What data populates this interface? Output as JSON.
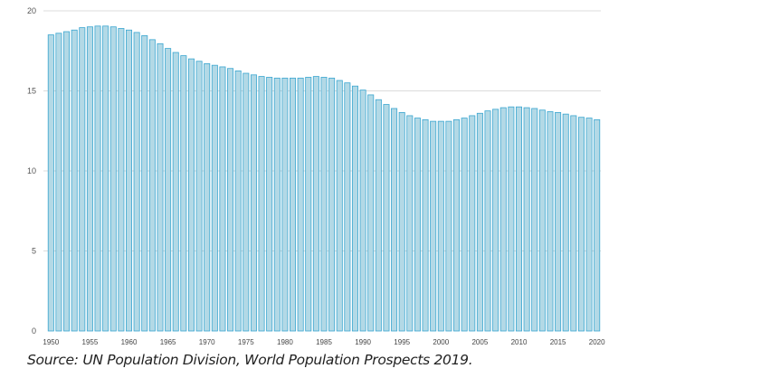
{
  "chart_data": {
    "type": "bar",
    "title": "",
    "xlabel": "",
    "ylabel": "",
    "ylim": [
      0,
      20
    ],
    "yticks": [
      "0",
      "5",
      "10",
      "15",
      "20"
    ],
    "xticks": [
      "1950",
      "1955",
      "1960",
      "1965",
      "1970",
      "1975",
      "1980",
      "1985",
      "1990",
      "1995",
      "2000",
      "2005",
      "2010",
      "2015",
      "2020"
    ],
    "grid": true,
    "bar_color": "#b3d9e6",
    "bar_edge_color": "#3aa6d0",
    "x": [
      1950,
      1951,
      1952,
      1953,
      1954,
      1955,
      1956,
      1957,
      1958,
      1959,
      1960,
      1961,
      1962,
      1963,
      1964,
      1965,
      1966,
      1967,
      1968,
      1969,
      1970,
      1971,
      1972,
      1973,
      1974,
      1975,
      1976,
      1977,
      1978,
      1979,
      1980,
      1981,
      1982,
      1983,
      1984,
      1985,
      1986,
      1987,
      1988,
      1989,
      1990,
      1991,
      1992,
      1993,
      1994,
      1995,
      1996,
      1997,
      1998,
      1999,
      2000,
      2001,
      2002,
      2003,
      2004,
      2005,
      2006,
      2007,
      2008,
      2009,
      2010,
      2011,
      2012,
      2013,
      2014,
      2015,
      2016,
      2017,
      2018,
      2019,
      2020
    ],
    "values": [
      18.5,
      18.6,
      18.7,
      18.8,
      18.95,
      19.0,
      19.05,
      19.05,
      19.0,
      18.9,
      18.8,
      18.65,
      18.45,
      18.2,
      17.95,
      17.65,
      17.4,
      17.2,
      17.0,
      16.85,
      16.7,
      16.6,
      16.5,
      16.4,
      16.25,
      16.1,
      16.0,
      15.9,
      15.85,
      15.8,
      15.8,
      15.8,
      15.8,
      15.85,
      15.9,
      15.85,
      15.8,
      15.65,
      15.5,
      15.3,
      15.05,
      14.75,
      14.45,
      14.15,
      13.9,
      13.65,
      13.45,
      13.3,
      13.2,
      13.1,
      13.1,
      13.1,
      13.2,
      13.3,
      13.45,
      13.6,
      13.75,
      13.85,
      13.95,
      14.0,
      14.0,
      13.95,
      13.9,
      13.8,
      13.7,
      13.65,
      13.55,
      13.45,
      13.35,
      13.3,
      13.2
    ]
  },
  "source": "Source: UN Population Division, World Population Prospects 2019."
}
